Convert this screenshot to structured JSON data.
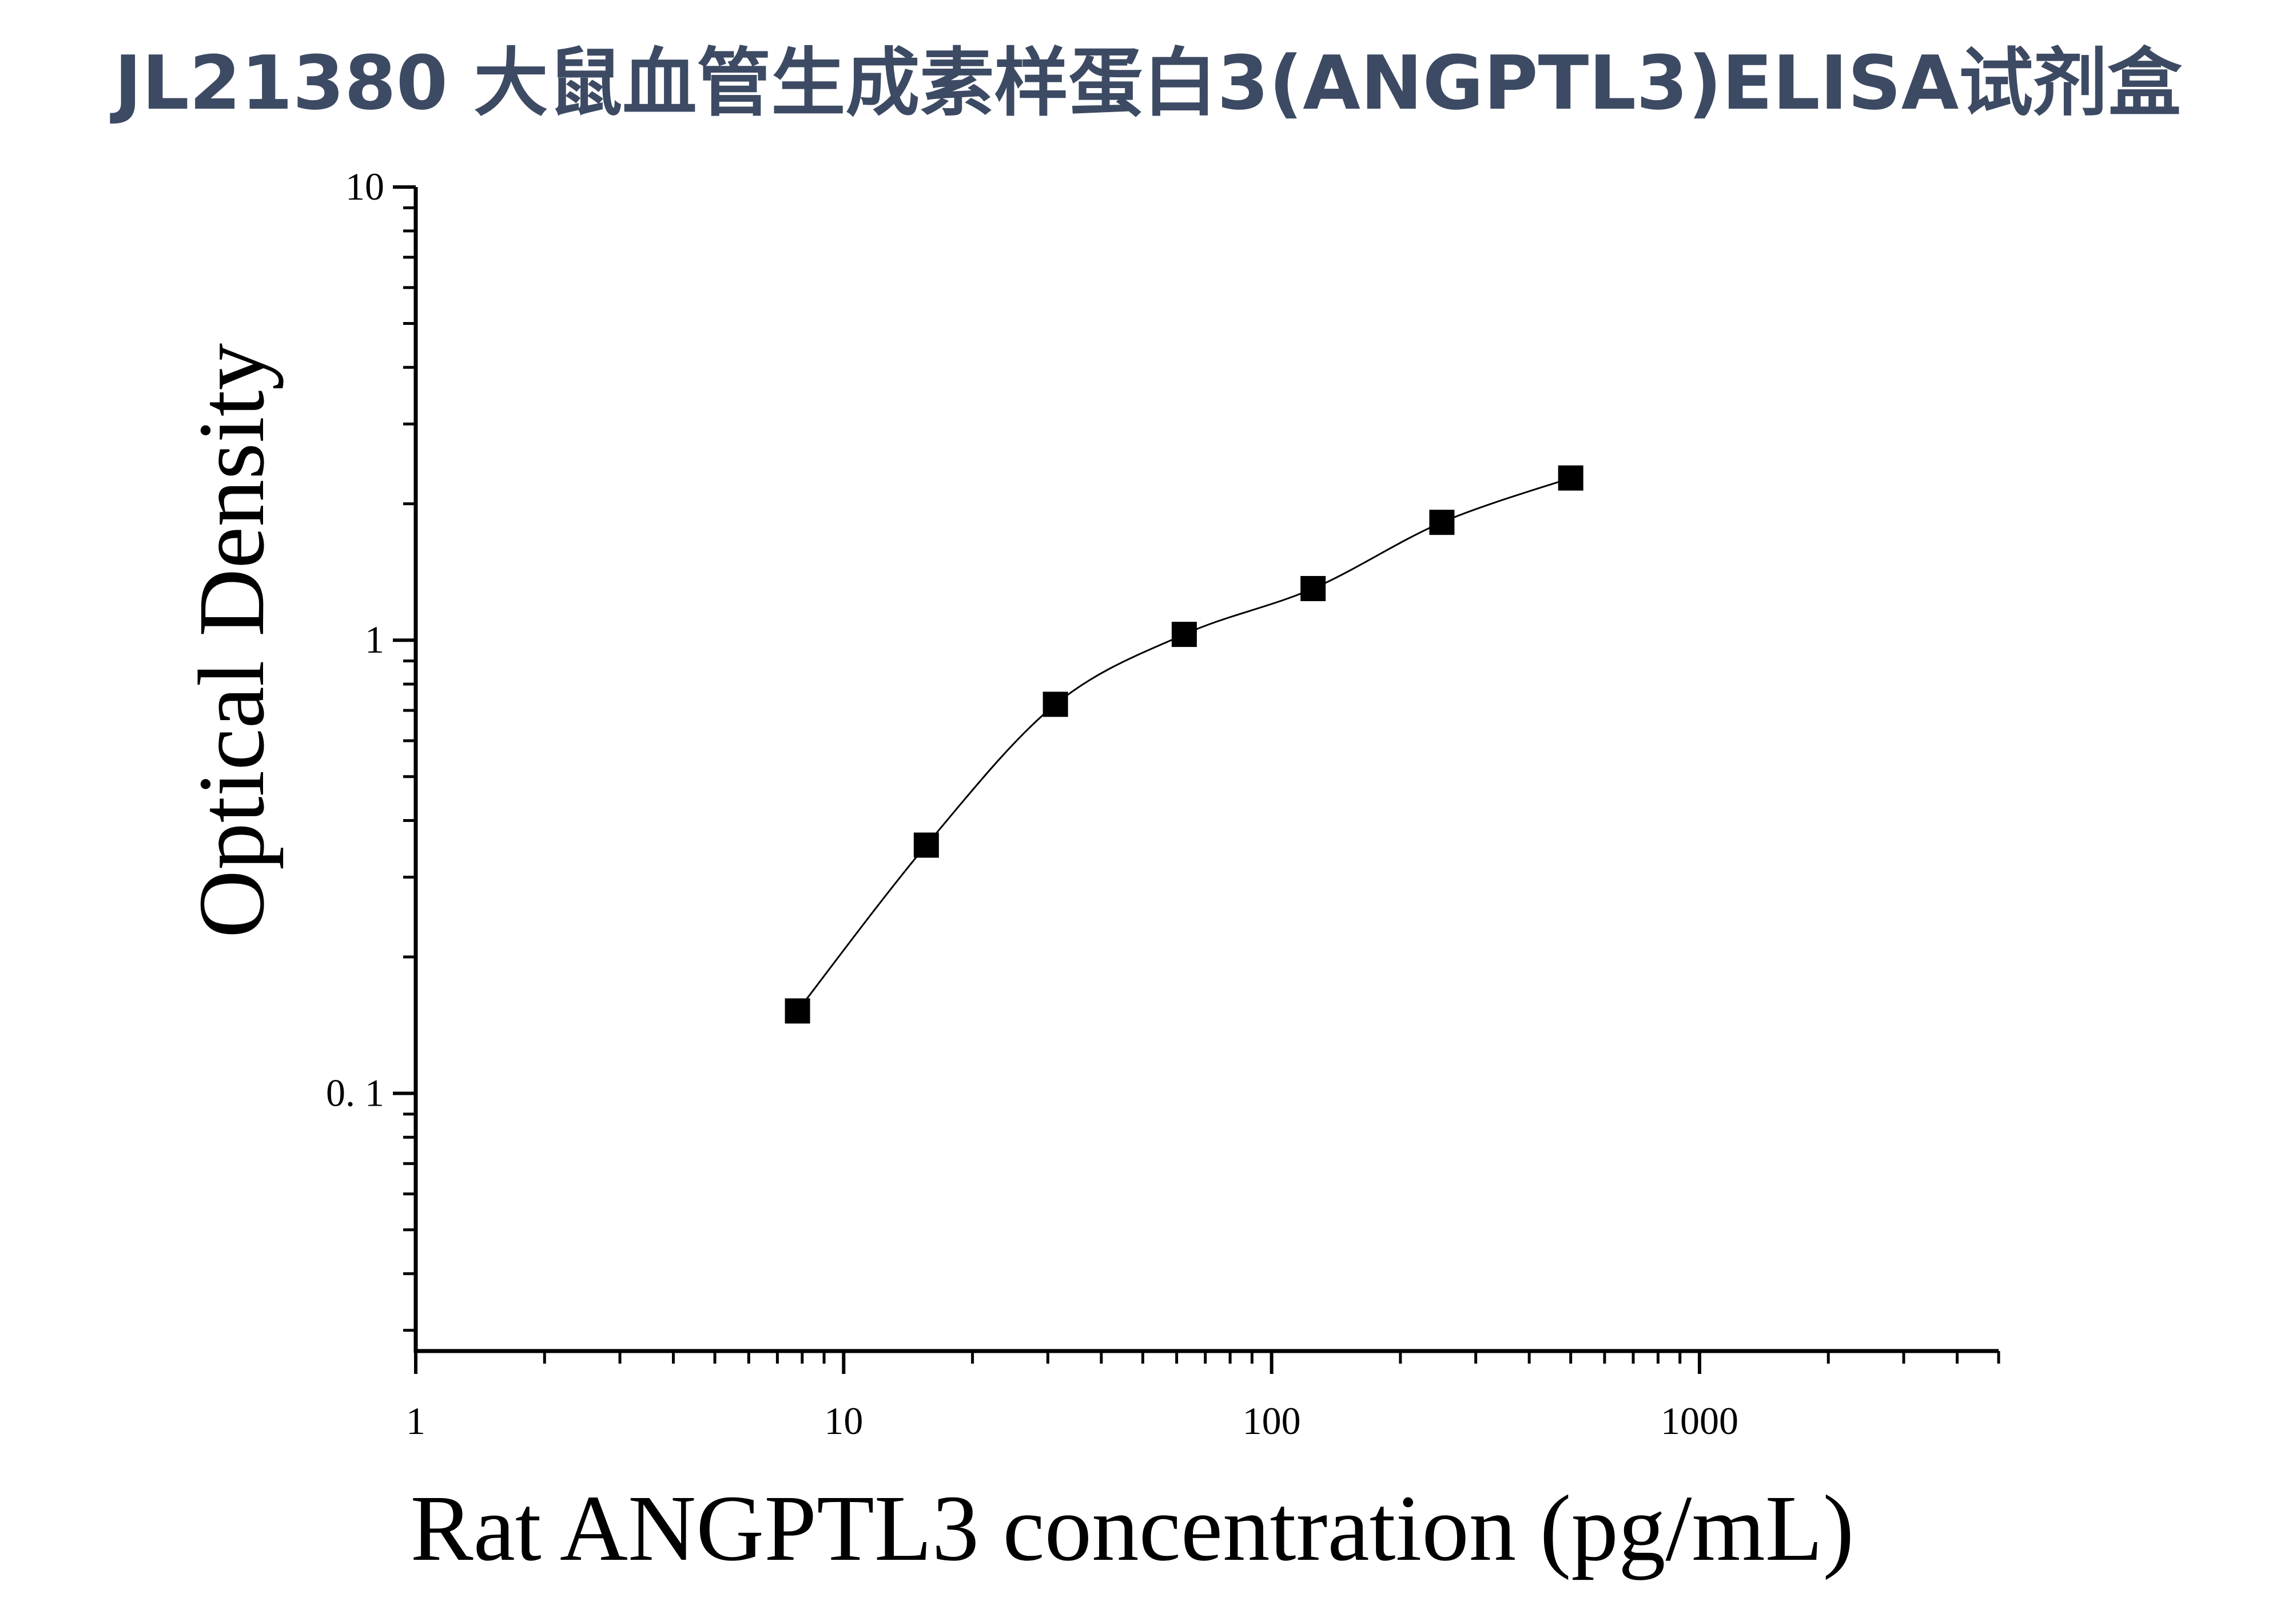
{
  "chart_data": {
    "type": "scatter",
    "title": "JL21380 大鼠血管生成素样蛋白3(ANGPTL3)ELISA试剂盒",
    "xlabel": "Rat ANGPTL3 concentration (pg/mL)",
    "ylabel": "Optical Density",
    "x_scale": "log",
    "y_scale": "log",
    "xlim": [
      1,
      5000
    ],
    "ylim": [
      0.027,
      10
    ],
    "x_ticks": [
      "1",
      "10",
      "100",
      "1000"
    ],
    "y_ticks": [
      "0. 1",
      "1",
      "10"
    ],
    "grid": false,
    "legend": "none",
    "marker_color": "#000000",
    "title_color": "#3d4a63",
    "fit_curve": true,
    "series": [
      {
        "x": [
          7.8,
          15.6,
          31.25,
          62.5,
          125,
          250,
          500
        ],
        "y": [
          0.152,
          0.353,
          0.722,
          1.03,
          1.3,
          1.82,
          2.28
        ]
      }
    ]
  }
}
